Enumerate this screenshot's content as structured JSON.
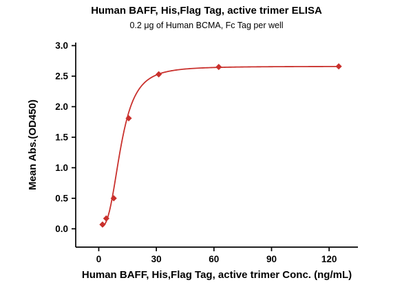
{
  "header": {
    "title": "Human BAFF, His,Flag Tag, active trimer ELISA",
    "subtitle": "0.2 μg of Human BCMA, Fc Tag per well"
  },
  "chart_data": {
    "type": "scatter",
    "title": "Human BAFF, His,Flag Tag, active trimer ELISA",
    "subtitle": "0.2 μg of Human BCMA, Fc Tag per well",
    "xlabel": "Human BAFF, His,Flag Tag, active trimer Conc. (ng/mL)",
    "ylabel": "Mean Abs.(OD450)",
    "x": [
      1.95,
      3.9,
      7.8,
      15.6,
      31.25,
      62.5,
      125
    ],
    "y": [
      0.07,
      0.17,
      0.5,
      1.81,
      2.53,
      2.65,
      2.66
    ],
    "xticks": [
      0,
      30,
      60,
      90,
      120
    ],
    "yticks": [
      0.0,
      0.5,
      1.0,
      1.5,
      2.0,
      2.5,
      3.0
    ],
    "xlim": [
      -12,
      135
    ],
    "ylim": [
      -0.3,
      3.05
    ],
    "marker": "diamond",
    "series_color": "#c9302c",
    "axis_color": "#000000",
    "grid": false,
    "legend": null,
    "fit_curve": {
      "model": "4pl",
      "bottom": 0.02,
      "top": 2.66,
      "ec50": 11.5,
      "hill": 3.0,
      "x_range": [
        1.7,
        125
      ]
    }
  }
}
